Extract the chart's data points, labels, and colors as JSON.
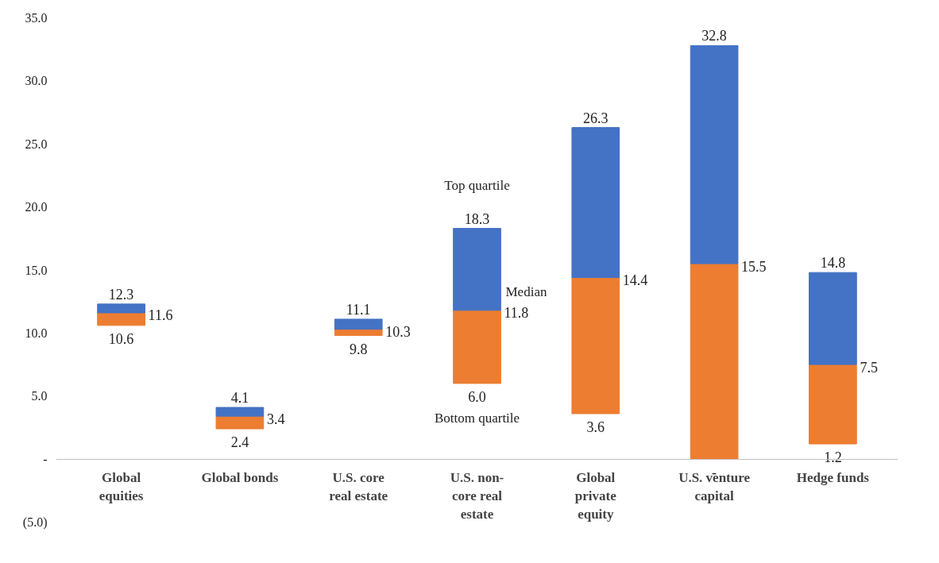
{
  "chart_data": {
    "type": "bar",
    "categories": [
      "Global equities",
      "Global bonds",
      "U.S. core real estate",
      "U.S. non-core real estate",
      "Global private equity",
      "U.S. venture capital",
      "Hedge funds"
    ],
    "series": [
      {
        "color": "#ed7d31",
        "base": [
          10.6,
          2.4,
          9.8,
          6.0,
          3.6,
          0.0,
          1.2
        ],
        "values": [
          1.0,
          1.0,
          0.5,
          5.8,
          10.8,
          15.5,
          6.3
        ]
      },
      {
        "color": "#4472c4",
        "base": [
          11.6,
          3.4,
          10.3,
          11.8,
          14.4,
          15.5,
          7.5
        ],
        "values": [
          0.7,
          0.7,
          0.8,
          6.5,
          11.9,
          17.3,
          7.3
        ],
        "value_labels": [
          "12.3",
          "4.1",
          "11.1",
          "18.3",
          "26.3",
          "32.8",
          "14.8"
        ]
      }
    ],
    "ylim": [
      -5,
      35
    ],
    "yticks": [
      {
        "value": -5,
        "label": "(5.0)"
      },
      {
        "value": 0,
        "label": "-"
      },
      {
        "value": 5,
        "label": "5.0"
      },
      {
        "value": 10,
        "label": "10.0"
      },
      {
        "value": 15,
        "label": "15.0"
      },
      {
        "value": 20,
        "label": "20.0"
      },
      {
        "value": 25,
        "label": "25.0"
      },
      {
        "value": 30,
        "label": "30.0"
      },
      {
        "value": 35,
        "label": "35.0"
      }
    ],
    "grid": false,
    "annotations": [
      {
        "text": "10.6",
        "x": "Global equities",
        "y": 10.6
      },
      {
        "text": "2.4",
        "x": "Global bonds",
        "y": 2.4
      },
      {
        "text": "9.8",
        "x": "U.S. core real estate",
        "y": 9.8
      },
      {
        "text": "6.0",
        "x": "U.S. non-core real estate",
        "y": 6.0
      },
      {
        "text": "3.6",
        "x": "Global private equity",
        "y": 3.6
      },
      {
        "text": "-",
        "x": "U.S. venture capital",
        "y": 0.0
      },
      {
        "text": "1.2",
        "x": "Hedge funds",
        "y": 1.2
      },
      {
        "text": "11.6",
        "x": "Global equities",
        "y": 11.6
      },
      {
        "text": "3.4",
        "x": "Global bonds",
        "y": 3.4
      },
      {
        "text": "10.3",
        "x": "U.S. core real estate",
        "y": 10.3
      },
      {
        "text": "11.8",
        "x": "U.S. non-core real estate",
        "y": 11.8
      },
      {
        "text": "14.4",
        "x": "Global private equity",
        "y": 14.4
      },
      {
        "text": "15.5",
        "x": "U.S. venture capital",
        "y": 15.5
      },
      {
        "text": "7.5",
        "x": "Hedge funds",
        "y": 7.5
      },
      {
        "text": "Top quartile",
        "x": "U.S. non-core real estate",
        "y": 18.3
      },
      {
        "text": "Median",
        "x": "U.S. non-core real estate",
        "y": 11.8
      },
      {
        "text": "Bottom quartile",
        "x": "U.S. non-core real estate",
        "y": 6.0
      }
    ]
  }
}
